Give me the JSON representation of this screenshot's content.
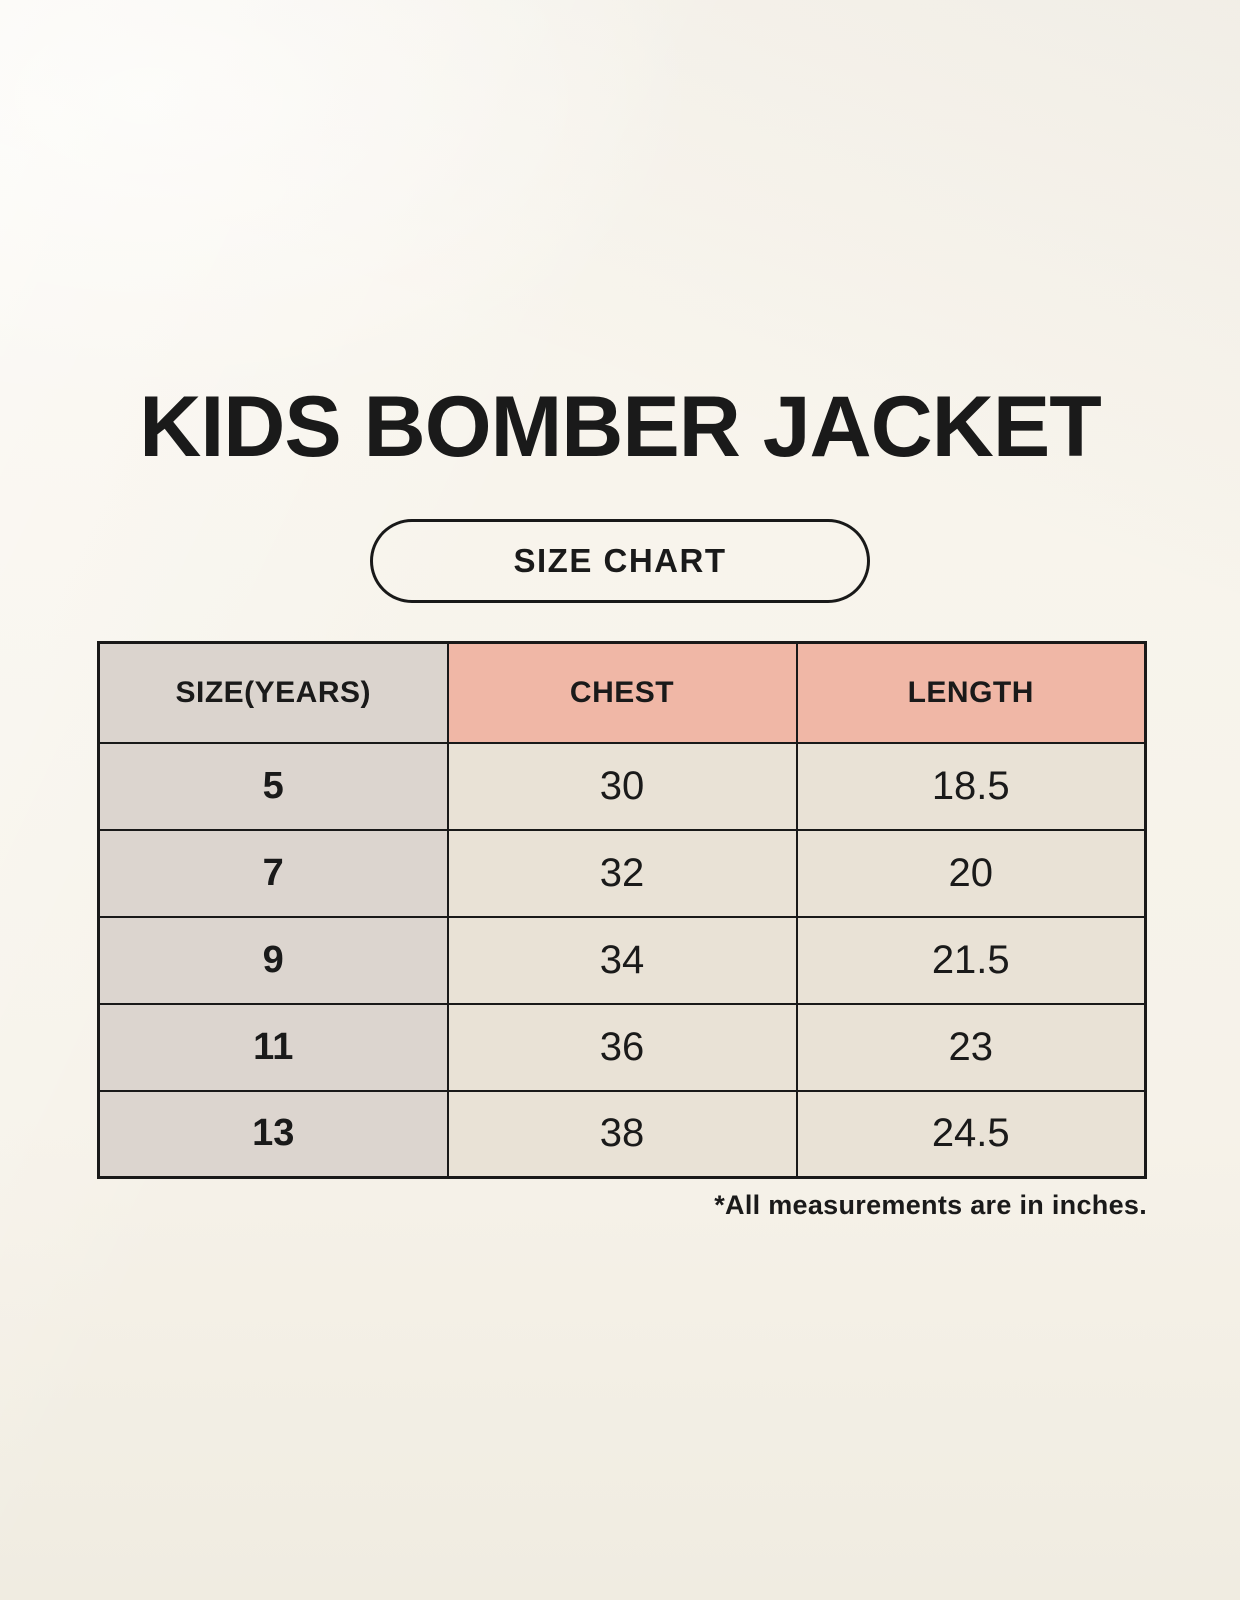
{
  "page": {
    "title": "KIDS BOMBER JACKET",
    "badge_label": "SIZE CHART",
    "footnote": "*All measurements are in inches."
  },
  "table": {
    "columns": [
      "SIZE(YEARS)",
      "CHEST",
      "LENGTH"
    ],
    "rows": [
      [
        "5",
        "30",
        "18.5"
      ],
      [
        "7",
        "32",
        "20"
      ],
      [
        "9",
        "34",
        "21.5"
      ],
      [
        "11",
        "36",
        "23"
      ],
      [
        "13",
        "38",
        "24.5"
      ]
    ],
    "units": "inches"
  },
  "colors": {
    "background": "#f8f5ee",
    "header_accent": "#f0b7a6",
    "header_neutral": "#dbd4ce",
    "row_label_bg": "#dcd5cf",
    "cell_bg": "#e9e2d6",
    "border": "#191919",
    "text": "#1a1a1a"
  }
}
